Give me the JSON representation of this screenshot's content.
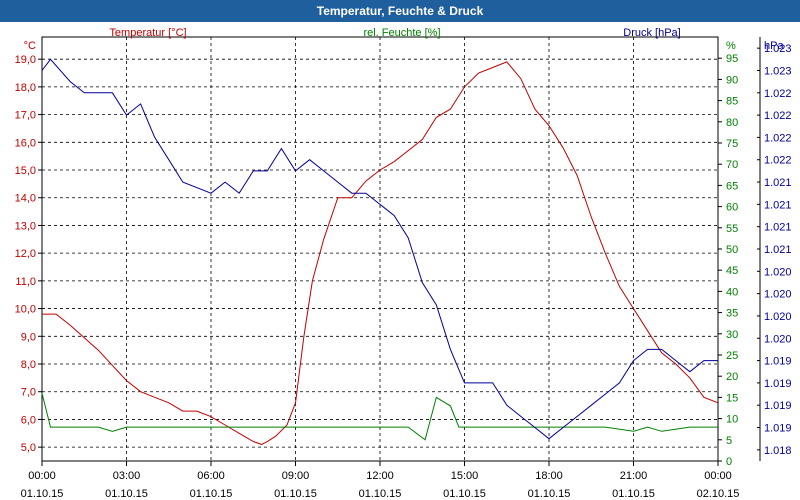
{
  "title": "Temperatur, Feuchte & Druck",
  "chart_data": {
    "type": "line",
    "x_ticks": [
      {
        "time": "00:00",
        "date": "01.10.15"
      },
      {
        "time": "03:00",
        "date": "01.10.15"
      },
      {
        "time": "06:00",
        "date": "01.10.15"
      },
      {
        "time": "09:00",
        "date": "01.10.15"
      },
      {
        "time": "12:00",
        "date": "01.10.15"
      },
      {
        "time": "15:00",
        "date": "01.10.15"
      },
      {
        "time": "18:00",
        "date": "01.10.15"
      },
      {
        "time": "21:00",
        "date": "01.10.15"
      },
      {
        "time": "00:00",
        "date": "02.10.15"
      }
    ],
    "x_range_hours": [
      0,
      24
    ],
    "axes": {
      "temperature": {
        "unit": "°C",
        "ticks": [
          "5,0",
          "6,0",
          "7,0",
          "8,0",
          "9,0",
          "10,0",
          "11,0",
          "12,0",
          "13,0",
          "14,0",
          "15,0",
          "16,0",
          "17,0",
          "18,0",
          "19,0"
        ],
        "range": [
          4.5,
          19.8
        ]
      },
      "humidity": {
        "unit": "%",
        "ticks": [
          "0",
          "5",
          "10",
          "15",
          "20",
          "25",
          "30",
          "35",
          "40",
          "45",
          "50",
          "55",
          "60",
          "65",
          "70",
          "75",
          "80",
          "85",
          "90",
          "95"
        ],
        "range": [
          0,
          100
        ]
      },
      "pressure": {
        "unit": "hPa",
        "ticks": [
          "1.018",
          "1.019",
          "1.019",
          "1.019",
          "1.019",
          "1.020",
          "1.020",
          "1.020",
          "1.020",
          "1.021",
          "1.021",
          "1.021",
          "1.021",
          "1.022",
          "1.022",
          "1.022",
          "1.022",
          "1.023",
          "1.023"
        ],
        "tick_positions": [
          0.5,
          1.5,
          2.5,
          3.5,
          4.5,
          5.5,
          6.5,
          7.5,
          8.5,
          9.5,
          10.5,
          11.5,
          12.5,
          13.5,
          14.5,
          15.5,
          16.5,
          17.5,
          18.5
        ],
        "range": [
          0,
          19
        ]
      }
    },
    "series": [
      {
        "name": "Temperatur [°C]",
        "axis": "temperature",
        "color": "#c00000",
        "points": [
          [
            0,
            9.8
          ],
          [
            0.5,
            9.8
          ],
          [
            1,
            9.4
          ],
          [
            2,
            8.5
          ],
          [
            3,
            7.4
          ],
          [
            3.5,
            7.0
          ],
          [
            4,
            6.8
          ],
          [
            4.5,
            6.6
          ],
          [
            5,
            6.3
          ],
          [
            5.5,
            6.3
          ],
          [
            6,
            6.1
          ],
          [
            6.5,
            5.8
          ],
          [
            7,
            5.5
          ],
          [
            7.5,
            5.2
          ],
          [
            7.8,
            5.1
          ],
          [
            8,
            5.2
          ],
          [
            8.3,
            5.4
          ],
          [
            8.7,
            5.8
          ],
          [
            9,
            6.6
          ],
          [
            9.3,
            9.0
          ],
          [
            9.6,
            11.0
          ],
          [
            10,
            12.5
          ],
          [
            10.5,
            14.0
          ],
          [
            11,
            14.0
          ],
          [
            11.5,
            14.6
          ],
          [
            12,
            15.0
          ],
          [
            12.5,
            15.3
          ],
          [
            13,
            15.7
          ],
          [
            13.5,
            16.1
          ],
          [
            14,
            16.9
          ],
          [
            14.5,
            17.2
          ],
          [
            15,
            18.0
          ],
          [
            15.5,
            18.5
          ],
          [
            16,
            18.7
          ],
          [
            16.5,
            18.9
          ],
          [
            17,
            18.3
          ],
          [
            17.5,
            17.2
          ],
          [
            18,
            16.6
          ],
          [
            18.5,
            15.8
          ],
          [
            19,
            14.8
          ],
          [
            19.5,
            13.3
          ],
          [
            20,
            12.0
          ],
          [
            20.5,
            10.8
          ],
          [
            21,
            10.0
          ],
          [
            21.5,
            9.2
          ],
          [
            22,
            8.4
          ],
          [
            22.5,
            8.0
          ],
          [
            23,
            7.5
          ],
          [
            23.5,
            6.8
          ],
          [
            24,
            6.6
          ]
        ]
      },
      {
        "name": "rel. Feuchte [%]",
        "axis": "humidity",
        "color": "#008000",
        "points": [
          [
            0,
            16
          ],
          [
            0.3,
            8
          ],
          [
            1,
            8
          ],
          [
            2,
            8
          ],
          [
            2.5,
            7
          ],
          [
            3,
            8
          ],
          [
            4,
            8
          ],
          [
            5,
            8
          ],
          [
            6,
            8
          ],
          [
            7,
            8
          ],
          [
            8,
            8
          ],
          [
            9,
            8
          ],
          [
            10,
            8
          ],
          [
            11,
            8
          ],
          [
            12,
            8
          ],
          [
            13,
            8
          ],
          [
            13.6,
            5
          ],
          [
            14,
            15
          ],
          [
            14.5,
            13
          ],
          [
            14.8,
            8
          ],
          [
            15,
            8
          ],
          [
            16,
            8
          ],
          [
            17,
            8
          ],
          [
            18,
            8
          ],
          [
            19,
            8
          ],
          [
            20,
            8
          ],
          [
            21,
            7
          ],
          [
            21.5,
            8
          ],
          [
            22,
            7
          ],
          [
            23,
            8
          ],
          [
            24,
            8
          ]
        ]
      },
      {
        "name": "Druck [hPa]",
        "axis": "pressure",
        "color": "#000099",
        "points": [
          [
            0,
            17.5
          ],
          [
            0.3,
            18.0
          ],
          [
            1,
            17.0
          ],
          [
            1.5,
            16.5
          ],
          [
            2.5,
            16.5
          ],
          [
            3,
            15.5
          ],
          [
            3.5,
            16.0
          ],
          [
            4,
            14.5
          ],
          [
            4.5,
            13.5
          ],
          [
            5,
            12.5
          ],
          [
            6,
            12.0
          ],
          [
            6.5,
            12.5
          ],
          [
            7,
            12.0
          ],
          [
            7.5,
            13.0
          ],
          [
            8,
            13.0
          ],
          [
            8.5,
            14.0
          ],
          [
            9,
            13.0
          ],
          [
            9.5,
            13.5
          ],
          [
            10,
            13.0
          ],
          [
            10.5,
            12.5
          ],
          [
            11,
            12.0
          ],
          [
            11.5,
            12.0
          ],
          [
            12,
            11.5
          ],
          [
            12.5,
            11.0
          ],
          [
            13,
            10.0
          ],
          [
            13.5,
            8.0
          ],
          [
            14,
            7.0
          ],
          [
            14.5,
            5.0
          ],
          [
            15,
            3.5
          ],
          [
            16,
            3.5
          ],
          [
            16.5,
            2.5
          ],
          [
            17,
            2.0
          ],
          [
            17.5,
            1.5
          ],
          [
            18,
            1.0
          ],
          [
            18.5,
            1.5
          ],
          [
            19,
            2.0
          ],
          [
            19.5,
            2.5
          ],
          [
            20,
            3.0
          ],
          [
            20.5,
            3.5
          ],
          [
            21,
            4.5
          ],
          [
            21.5,
            5.0
          ],
          [
            22,
            5.0
          ],
          [
            22.5,
            4.5
          ],
          [
            23,
            4.0
          ],
          [
            23.5,
            4.5
          ],
          [
            24,
            4.5
          ]
        ]
      }
    ],
    "legend": {
      "temperature": "Temperatur [°C]",
      "humidity": "rel. Feuchte [%]",
      "pressure": "Druck [hPa]"
    }
  }
}
